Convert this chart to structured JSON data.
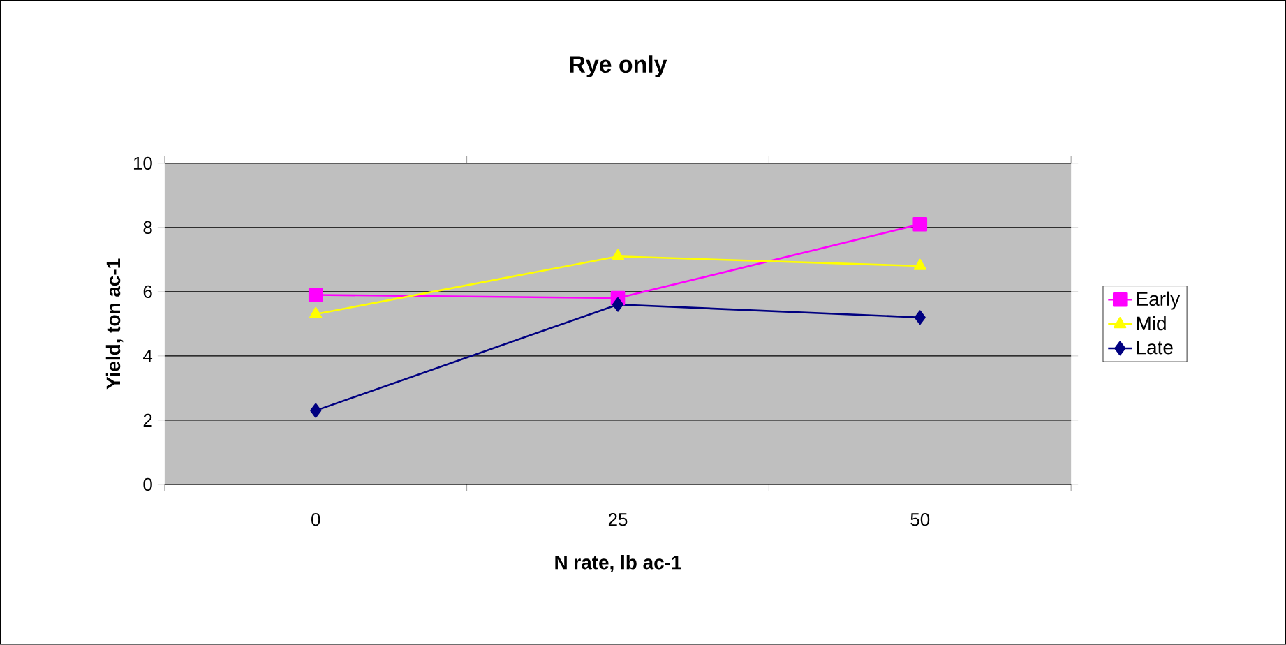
{
  "chart_data": {
    "type": "line",
    "title": "Rye only",
    "xlabel": "N rate, lb ac-1",
    "ylabel": "Yield, ton ac-1",
    "categories": [
      "0",
      "25",
      "50"
    ],
    "series": [
      {
        "name": "Early",
        "color": "#ff00ff",
        "marker": "square",
        "values": [
          5.9,
          5.8,
          8.1
        ]
      },
      {
        "name": "Mid",
        "color": "#ffff00",
        "marker": "triangle",
        "values": [
          5.3,
          7.1,
          6.8
        ]
      },
      {
        "name": "Late",
        "color": "#000080",
        "marker": "diamond",
        "values": [
          2.3,
          5.6,
          5.2
        ]
      }
    ],
    "ylim": [
      0,
      10
    ],
    "yticks": [
      0,
      2,
      4,
      6,
      8,
      10
    ],
    "grid": "y",
    "legend": "right"
  }
}
